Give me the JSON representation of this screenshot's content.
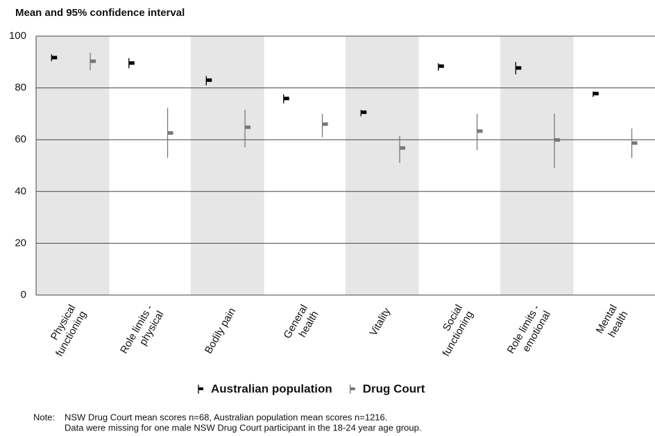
{
  "chart_data": {
    "type": "errorbar",
    "title": "Mean and 95% confidence interval",
    "categories": [
      "Physical\nfunctioning",
      "Role limits -\nphysical",
      "Bodily pain",
      "General\nhealth",
      "Vitality",
      "Social\nfunctioning",
      "Role limits -\nemotional",
      "Mental\nhealth"
    ],
    "series": [
      {
        "name": "Australian population",
        "color": "#000000",
        "values": [
          91.7,
          89.6,
          83.0,
          75.9,
          70.6,
          88.4,
          87.7,
          77.8
        ],
        "lower": [
          90.3,
          87.6,
          81.0,
          74.0,
          69.0,
          86.6,
          85.2,
          76.5
        ],
        "upper": [
          93.0,
          91.5,
          84.6,
          77.5,
          71.5,
          89.5,
          90.0,
          78.6
        ]
      },
      {
        "name": "Drug Court",
        "color": "#777777",
        "values": [
          90.3,
          62.6,
          64.8,
          66.0,
          56.8,
          63.3,
          59.9,
          58.7
        ],
        "lower": [
          86.8,
          53.0,
          57.0,
          61.0,
          51.0,
          56.0,
          49.0,
          53.0
        ],
        "upper": [
          93.6,
          72.3,
          71.5,
          70.0,
          61.5,
          70.0,
          70.0,
          64.3
        ]
      }
    ],
    "ylim": [
      0,
      100
    ],
    "yticks": [
      0,
      20,
      40,
      60,
      80,
      100
    ],
    "grid": true,
    "shaded_bands": true,
    "note_label": "Note:",
    "notes": [
      "NSW Drug Court mean scores n=68, Australian population mean scores n=1216.",
      "Data were missing for one male NSW Drug Court participant in the 18-24 year age group."
    ]
  }
}
